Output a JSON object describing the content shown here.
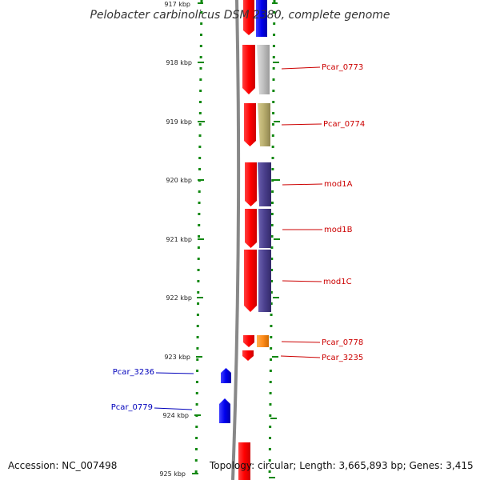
{
  "title": "Pelobacter carbinolicus DSM 2380, complete genome",
  "axis": {
    "unit": "kbp",
    "ticks": [
      {
        "kbp": 917,
        "label": "917 kbp"
      },
      {
        "kbp": 918,
        "label": "918 kbp"
      },
      {
        "kbp": 919,
        "label": "919 kbp"
      },
      {
        "kbp": 920,
        "label": "920 kbp"
      },
      {
        "kbp": 921,
        "label": "921 kbp"
      },
      {
        "kbp": 922,
        "label": "922 kbp"
      },
      {
        "kbp": 923,
        "label": "923 kbp"
      },
      {
        "kbp": 924,
        "label": "924 kbp"
      },
      {
        "kbp": 925,
        "label": "925 kbp"
      }
    ]
  },
  "genes": [
    {
      "name": "Pcar_0773",
      "strand": "forward",
      "color": "#c0c0c0"
    },
    {
      "name": "Pcar_0774",
      "strand": "forward",
      "color": "#b8ad6e"
    },
    {
      "name": "mod1A",
      "strand": "forward",
      "color": "#4a3f8c"
    },
    {
      "name": "mod1B",
      "strand": "forward",
      "color": "#4a3f8c"
    },
    {
      "name": "mod1C",
      "strand": "forward",
      "color": "#4a3f8c"
    },
    {
      "name": "Pcar_0778",
      "strand": "forward",
      "color": "#ff8c1a"
    },
    {
      "name": "Pcar_3235",
      "strand": "forward",
      "color": "#ff0000"
    },
    {
      "name": "Pcar_3236",
      "strand": "reverse",
      "color": "#0000ee"
    },
    {
      "name": "Pcar_0779",
      "strand": "reverse",
      "color": "#0000ee"
    }
  ],
  "colors": {
    "forward_label": "#cc0000",
    "reverse_label": "#0000bb",
    "forward_cds": "#ff0000",
    "reverse_cds": "#0000ee",
    "ticks": "#118811",
    "backbone": "#888888"
  },
  "footer": {
    "accession": "Accession: NC_007498",
    "topology": "Topology: circular; Length: 3,665,893 bp; Genes: 3,415"
  }
}
